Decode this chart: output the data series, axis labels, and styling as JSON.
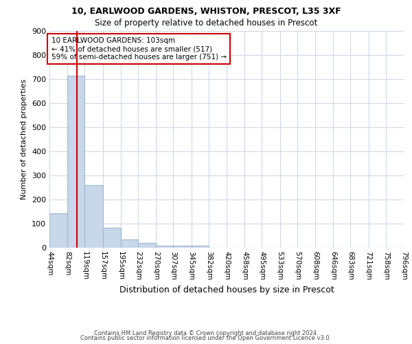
{
  "title1": "10, EARLWOOD GARDENS, WHISTON, PRESCOT, L35 3XF",
  "title2": "Size of property relative to detached houses in Prescot",
  "xlabel": "Distribution of detached houses by size in Prescot",
  "ylabel": "Number of detached properties",
  "footnote1": "Contains HM Land Registry data © Crown copyright and database right 2024.",
  "footnote2": "Contains public sector information licensed under the Open Government Licence v3.0.",
  "annotation_line1": "10 EARLWOOD GARDENS: 103sqm",
  "annotation_line2": "← 41% of detached houses are smaller (517)",
  "annotation_line3": "59% of semi-detached houses are larger (751) →",
  "bar_edges": [
    44,
    82,
    119,
    157,
    195,
    232,
    270,
    307,
    345,
    382,
    420,
    458,
    495,
    533,
    570,
    608,
    646,
    683,
    721,
    758,
    796
  ],
  "bar_heights": [
    144,
    713,
    260,
    83,
    35,
    20,
    10,
    10,
    10,
    0,
    0,
    0,
    0,
    0,
    0,
    0,
    0,
    0,
    0,
    0
  ],
  "bar_color": "#c8d8ea",
  "bar_edgecolor": "#a0b8cc",
  "redline_x": 103,
  "redline_color": "#cc0000",
  "annotation_box_edgecolor": "#cc0000",
  "ylim": [
    0,
    900
  ],
  "yticks": [
    0,
    100,
    200,
    300,
    400,
    500,
    600,
    700,
    800,
    900
  ],
  "background_color": "#ffffff",
  "grid_color": "#d0d8e8"
}
